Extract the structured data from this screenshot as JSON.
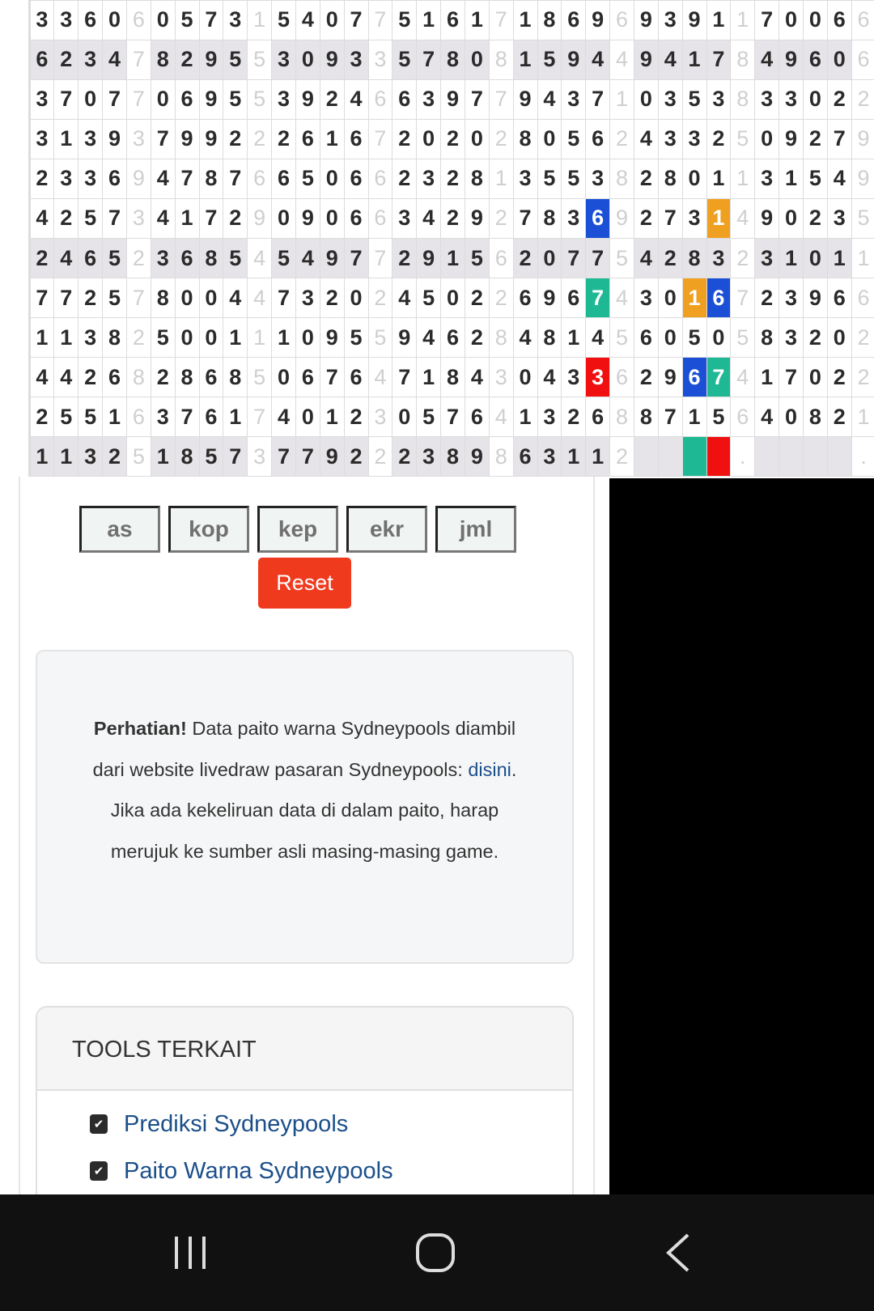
{
  "grid": {
    "rows": [
      "33606057315407751617186969391170066",
      "62347829553093357808159449417849606",
      "37077069553924663977943710353833022",
      "31393799222616720202805624332509279",
      "23369478766506623281355382801131549",
      "42573417290906634292783692731490235",
      "24652368545497729156207754283231011",
      "77257800447320245022696743016723966",
      "11382500111095594628481456050583202",
      "44268286850676471843043362967417022",
      "25516376174012305764132688715640821",
      "1132518573779222389863112    .    ."
    ],
    "shaded_rows": [
      1,
      6,
      11
    ],
    "highlights": [
      {
        "row": 5,
        "col": 23,
        "color": "#1a4fd6"
      },
      {
        "row": 5,
        "col": 28,
        "color": "#f0a020"
      },
      {
        "row": 7,
        "col": 23,
        "color": "#1fb894"
      },
      {
        "row": 7,
        "col": 27,
        "color": "#f0a020"
      },
      {
        "row": 7,
        "col": 28,
        "color": "#1a4fd6"
      },
      {
        "row": 9,
        "col": 23,
        "color": "#f01010"
      },
      {
        "row": 9,
        "col": 27,
        "color": "#1a4fd6"
      },
      {
        "row": 9,
        "col": 28,
        "color": "#1fb894"
      },
      {
        "row": 11,
        "col": 27,
        "color": "#1fb894"
      },
      {
        "row": 11,
        "col": 28,
        "color": "#f01010"
      }
    ]
  },
  "toggles": [
    "as",
    "kop",
    "kep",
    "ekr",
    "jml"
  ],
  "reset_label": "Reset",
  "notice": {
    "bold": "Perhatian!",
    "text1": " Data paito warna Sydneypools diambil dari website livedraw pasaran Sydneypools: ",
    "link": "disini",
    "text2": ". Jika ada kekeliruan data di dalam paito, harap merujuk ke sumber asli masing-masing game."
  },
  "tools": {
    "title": "TOOLS TERKAIT",
    "items": [
      "Prediksi Sydneypools",
      "Paito Warna Sydneypools"
    ]
  }
}
